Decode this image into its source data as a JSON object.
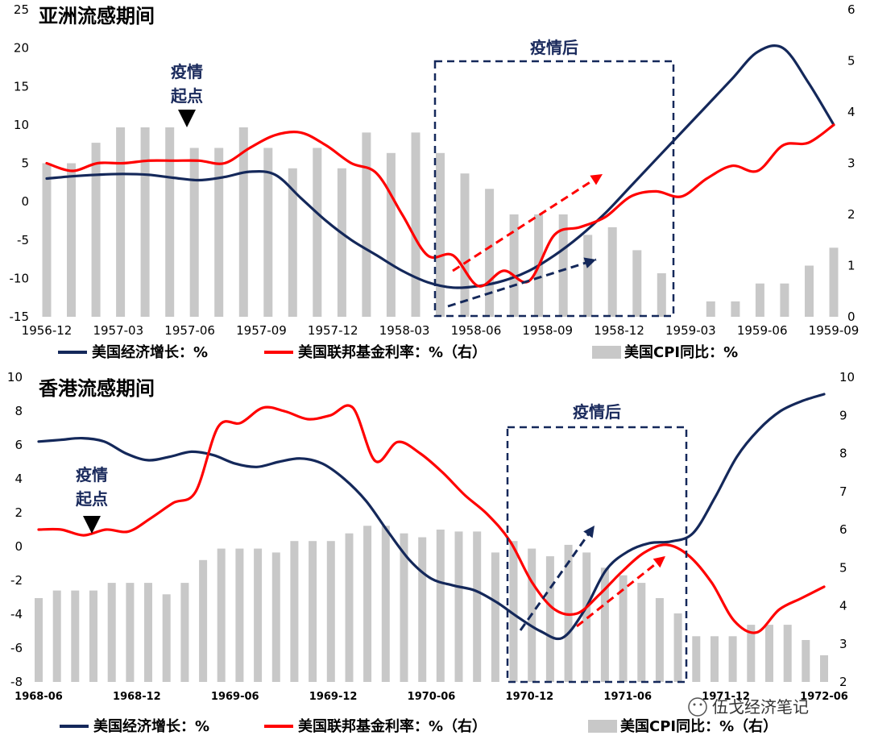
{
  "watermark": "伍戈经济笔记",
  "chart_data": [
    {
      "type": "line+bar",
      "title": "亚洲流感期间",
      "x_tick_labels": [
        "1956-12",
        "1957-03",
        "1957-06",
        "1957-09",
        "1957-12",
        "1958-03",
        "1958-06",
        "1958-09",
        "1958-12",
        "1959-03",
        "1959-06",
        "1959-09"
      ],
      "left_axis": {
        "ylim": [
          -15,
          25
        ],
        "ticks": [
          25,
          20,
          15,
          10,
          5,
          0,
          -5,
          -10,
          -15
        ]
      },
      "right_axis": {
        "ylim": [
          0,
          6
        ],
        "ticks": [
          6,
          5,
          4,
          3,
          2,
          1,
          0
        ]
      },
      "annotations": {
        "start_label_line1": "疫情",
        "start_label_line2": "起点",
        "after_label": "疫情后"
      },
      "series": [
        {
          "name": "美国经济增长：%",
          "axis": "left",
          "color": "#14285a",
          "values": [
            3.0,
            3.3,
            3.5,
            3.6,
            3.5,
            3.1,
            2.8,
            3.2,
            3.9,
            3.5,
            0.5,
            -2.5,
            -5.0,
            -7.0,
            -9.0,
            -10.5,
            -11.2,
            -11.0,
            -10.3,
            -9.0,
            -7.0,
            -4.5,
            -1.5,
            2.0,
            5.5,
            9.0,
            12.5,
            16.0,
            19.5,
            20.0,
            15.5,
            10.0
          ]
        },
        {
          "name": "美国联邦基金利率：%（右）",
          "axis": "right",
          "color": "#ff0000",
          "values": [
            3.0,
            2.85,
            3.0,
            3.0,
            3.05,
            3.05,
            3.05,
            3.0,
            3.3,
            3.55,
            3.6,
            3.35,
            3.0,
            2.8,
            2.0,
            1.2,
            1.2,
            0.6,
            0.9,
            0.7,
            1.6,
            1.75,
            1.95,
            2.35,
            2.45,
            2.35,
            2.7,
            2.95,
            2.85,
            3.35,
            3.4,
            3.75
          ]
        },
        {
          "name": "美国CPI同比：%",
          "axis": "right",
          "color": "#c8c8c8",
          "kind": "bar",
          "values": [
            3.0,
            3.0,
            3.4,
            3.7,
            3.7,
            3.7,
            3.3,
            3.3,
            3.7,
            3.3,
            2.9,
            3.3,
            2.9,
            3.6,
            3.2,
            3.6,
            3.2,
            2.8,
            2.5,
            2.0,
            2.0,
            2.0,
            1.6,
            1.75,
            1.3,
            0.85,
            0.0,
            0.3,
            0.3,
            0.65,
            0.65,
            1.0,
            1.35
          ]
        }
      ]
    },
    {
      "type": "line+bar",
      "title": "香港流感期间",
      "x_tick_labels": [
        "1968-06",
        "1968-12",
        "1969-06",
        "1969-12",
        "1970-06",
        "1970-12",
        "1971-06",
        "1971-12",
        "1972-06"
      ],
      "left_axis": {
        "ylim": [
          -8,
          10
        ],
        "ticks": [
          10,
          8,
          6,
          4,
          2,
          0,
          -2,
          -4,
          -6,
          -8
        ]
      },
      "right_axis": {
        "ylim": [
          2,
          10
        ],
        "ticks": [
          10,
          9,
          8,
          7,
          6,
          5,
          4,
          3,
          2
        ]
      },
      "annotations": {
        "start_label_line1": "疫情",
        "start_label_line2": "起点",
        "after_label": "疫情后"
      },
      "series": [
        {
          "name": "美国经济增长：%",
          "axis": "left",
          "color": "#14285a",
          "values": [
            6.2,
            6.3,
            6.4,
            6.2,
            5.5,
            5.1,
            5.3,
            5.6,
            5.4,
            4.9,
            4.7,
            5.0,
            5.2,
            4.9,
            4.0,
            2.7,
            0.9,
            -0.8,
            -1.9,
            -2.3,
            -2.6,
            -3.3,
            -4.2,
            -5.0,
            -5.4,
            -3.8,
            -1.4,
            -0.3,
            0.2,
            0.3,
            0.8,
            2.9,
            5.3,
            6.9,
            8.0,
            8.6,
            9.0
          ]
        },
        {
          "name": "美国联邦基金利率：%（右）",
          "axis": "right",
          "color": "#ff0000",
          "values": [
            6.0,
            6.0,
            5.85,
            6.0,
            5.95,
            6.3,
            6.7,
            7.0,
            8.7,
            8.8,
            9.2,
            9.1,
            8.9,
            9.0,
            9.2,
            7.8,
            8.3,
            8.0,
            7.5,
            6.9,
            6.4,
            5.7,
            4.6,
            3.9,
            3.8,
            4.3,
            4.9,
            5.4,
            5.6,
            5.3,
            4.6,
            3.6,
            3.3,
            3.9,
            4.2,
            4.5
          ]
        },
        {
          "name": "美国CPI同比：%（右）",
          "axis": "right",
          "color": "#c8c8c8",
          "kind": "bar",
          "values": [
            4.2,
            4.4,
            4.4,
            4.4,
            4.6,
            4.6,
            4.6,
            4.3,
            4.6,
            5.2,
            5.5,
            5.5,
            5.5,
            5.4,
            5.7,
            5.7,
            5.7,
            5.9,
            6.1,
            6.1,
            5.9,
            5.8,
            6.0,
            5.95,
            5.95,
            5.4,
            5.7,
            5.5,
            5.3,
            5.6,
            5.4,
            5.0,
            4.8,
            4.6,
            4.2,
            3.8,
            3.2,
            3.2,
            3.2,
            3.5,
            3.5,
            3.5,
            3.1,
            2.7
          ]
        }
      ]
    }
  ]
}
